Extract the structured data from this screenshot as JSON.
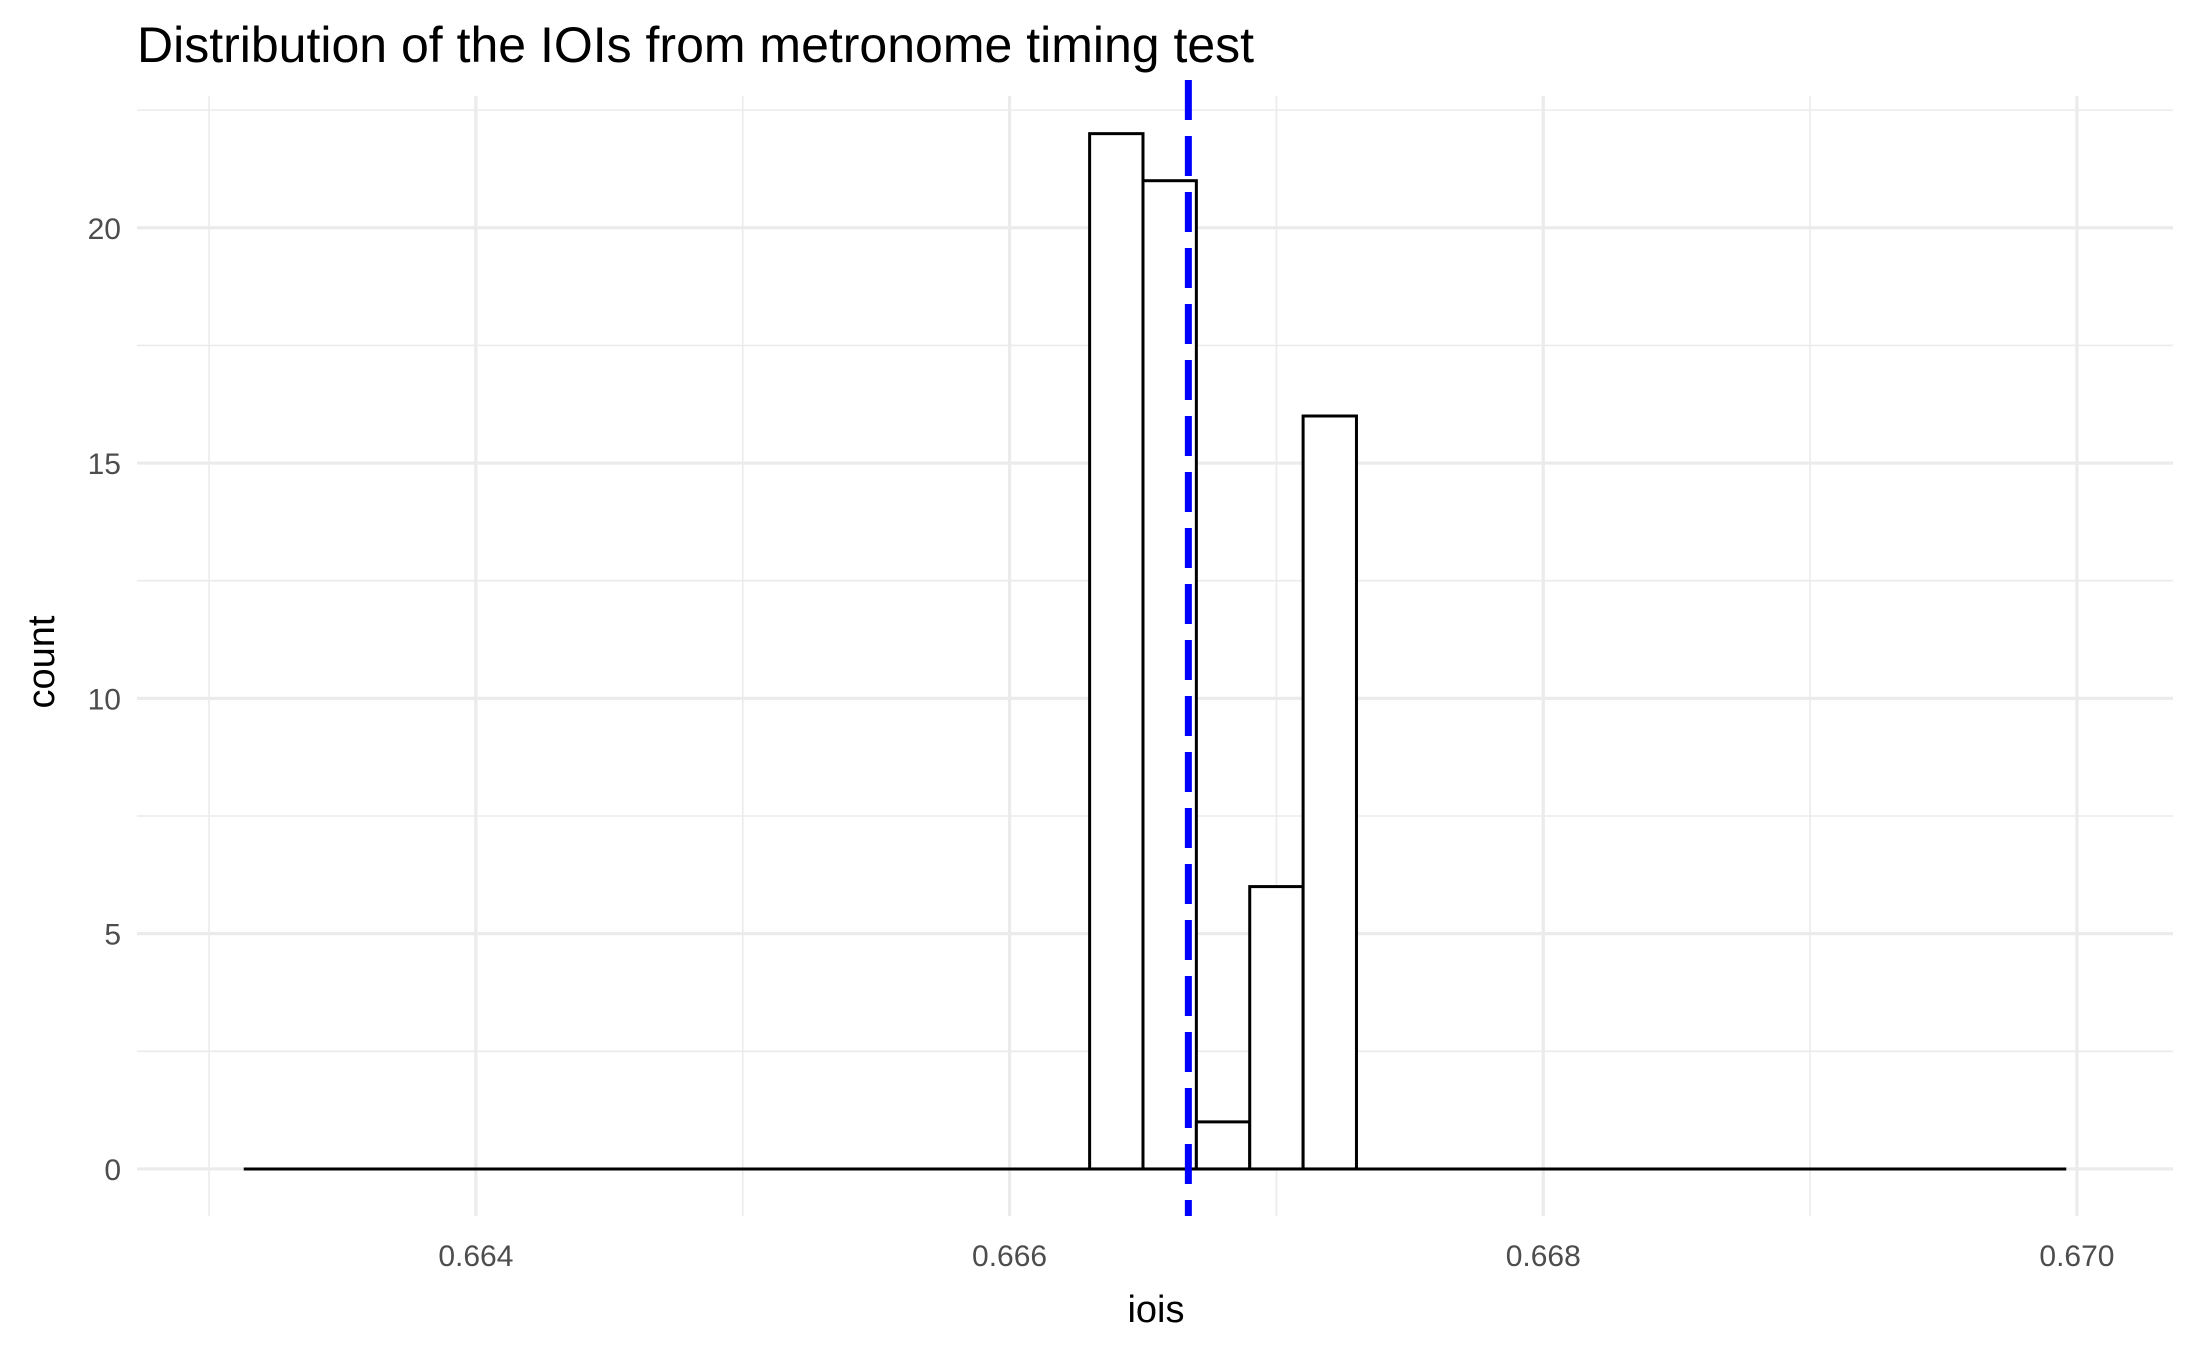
{
  "chart_data": {
    "type": "bar",
    "title": "Distribution of the IOIs from metronome timing test",
    "xlabel": "iois",
    "ylabel": "count",
    "xlim": [
      0.66273,
      0.67036
    ],
    "ylim": [
      -1.0,
      22.8
    ],
    "x_ticks": [
      0.664,
      0.666,
      0.668,
      0.67
    ],
    "x_tick_labels": [
      "0.664",
      "0.666",
      "0.668",
      "0.670"
    ],
    "y_ticks": [
      0,
      5,
      10,
      15,
      20
    ],
    "y_tick_labels": [
      "0",
      "5",
      "10",
      "15",
      "20"
    ],
    "grid": true,
    "binwidth": 0.0002,
    "baseline_range": [
      0.66313,
      0.66996
    ],
    "bins": [
      {
        "x0": 0.6663,
        "x1": 0.6665,
        "count": 22
      },
      {
        "x0": 0.6665,
        "x1": 0.6667,
        "count": 21
      },
      {
        "x0": 0.6667,
        "x1": 0.6669,
        "count": 1
      },
      {
        "x0": 0.6669,
        "x1": 0.6671,
        "count": 6
      },
      {
        "x0": 0.6671,
        "x1": 0.6673,
        "count": 16
      }
    ],
    "vline": {
      "x": 0.66667,
      "color": "#0000ff",
      "style": "dashed"
    }
  }
}
